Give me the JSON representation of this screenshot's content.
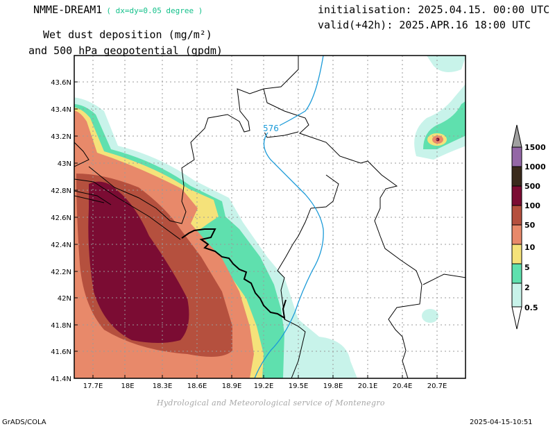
{
  "header": {
    "model_name": "NMME-DREAM1",
    "model_resolution": "( dx=dy=0.05 degree )",
    "field_title_line1": "Wet dust deposition (mg/m²)",
    "field_title_line2": "and 500 hPa geopotential (gpdm)",
    "initialisation": "initialisation: 2025.04.15. 00:00 UTC",
    "valid": "valid(+42h): 2025.APR.16 18:00 UTC"
  },
  "map": {
    "lat_labels": [
      "43.6N",
      "43.4N",
      "43.2N",
      "43N",
      "42.8N",
      "42.6N",
      "42.4N",
      "42.2N",
      "42N",
      "41.8N",
      "41.6N",
      "41.4N"
    ],
    "lon_labels": [
      "17.7E",
      "18E",
      "18.3E",
      "18.6E",
      "18.9E",
      "19.2E",
      "19.5E",
      "19.8E",
      "20.1E",
      "20.4E",
      "20.7E"
    ],
    "contour_label": "576"
  },
  "legend": {
    "levels": [
      "1500",
      "1000",
      "500",
      "100",
      "50",
      "10",
      "5",
      "2",
      "0.5"
    ],
    "colors": [
      "#a0a0a0",
      "#9467a6",
      "#3a2a1c",
      "#7b0c33",
      "#b5503e",
      "#e8896a",
      "#f5e27a",
      "#5fe0ae",
      "#c8f3ea",
      "#ffffff"
    ]
  },
  "colors": {
    "lvl_0_5": "#c8f3ea",
    "lvl_2": "#5fe0ae",
    "lvl_5": "#f5e27a",
    "lvl_10": "#e8896a",
    "lvl_50": "#b5503e",
    "lvl_100": "#7b0c33",
    "geopotential_contour": "#1a9ad8",
    "credit": "#a6a6a6",
    "resolution_text": "#13c08a"
  },
  "footer": {
    "credit": "Hydrological and Meteorological service of Montenegro",
    "software": "GrADS/COLA",
    "timestamp": "2025-04-15-10:51"
  }
}
